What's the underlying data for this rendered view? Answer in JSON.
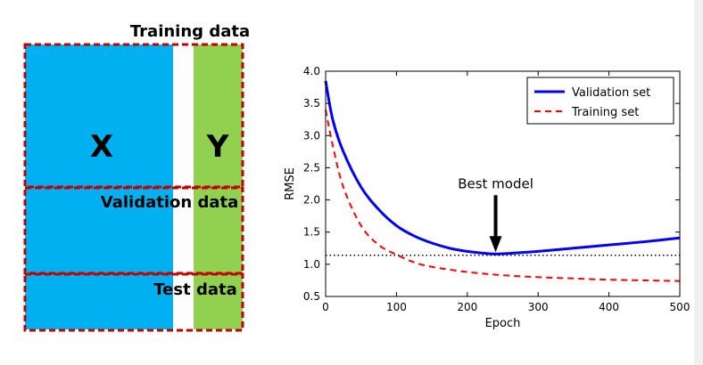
{
  "diagram": {
    "title": "Training data",
    "x_label": "X",
    "y_label": "Y",
    "validation_label": "Validation data",
    "test_label": "Test data",
    "colors": {
      "x_block": "#00b0f0",
      "y_block": "#92d050",
      "dashed_border": "#c00000"
    }
  },
  "chart_data": {
    "type": "line",
    "xlabel": "Epoch",
    "ylabel": "RMSE",
    "xlim": [
      0,
      500
    ],
    "ylim": [
      0.5,
      4.0
    ],
    "xticks": [
      "0",
      "100",
      "200",
      "300",
      "400",
      "500"
    ],
    "yticks": [
      "0.5",
      "1.0",
      "1.5",
      "2.0",
      "2.5",
      "3.0",
      "3.5",
      "4.0"
    ],
    "series": [
      {
        "name": "Validation set",
        "style": "solid",
        "color": "#0000ff",
        "x": [
          0,
          10,
          25,
          50,
          75,
          100,
          125,
          150,
          175,
          200,
          225,
          240,
          260,
          300,
          350,
          400,
          450,
          500
        ],
        "y": [
          3.85,
          3.25,
          2.75,
          2.2,
          1.85,
          1.6,
          1.44,
          1.33,
          1.25,
          1.2,
          1.17,
          1.16,
          1.17,
          1.2,
          1.25,
          1.3,
          1.35,
          1.41
        ]
      },
      {
        "name": "Training set",
        "style": "dashed",
        "color": "#ff0000",
        "x": [
          0,
          10,
          25,
          50,
          75,
          100,
          125,
          150,
          200,
          250,
          300,
          350,
          400,
          450,
          500
        ],
        "y": [
          3.4,
          2.85,
          2.2,
          1.6,
          1.3,
          1.15,
          1.03,
          0.96,
          0.88,
          0.83,
          0.8,
          0.78,
          0.76,
          0.75,
          0.74
        ]
      }
    ],
    "reference_line": {
      "y": 1.14,
      "style": "dotted",
      "color": "#000000"
    },
    "annotation": {
      "text": "Best model",
      "x": 240,
      "y": 1.16
    },
    "legend_position": "top-right",
    "grid": false
  }
}
